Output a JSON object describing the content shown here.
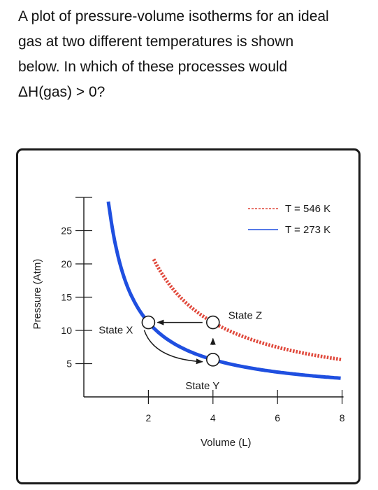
{
  "question": {
    "line1": "A plot of pressure-volume isotherms for an ideal",
    "line2": "gas at two different temperatures is shown",
    "line3": "below. In which of these processes would",
    "line4": "ΔH(gas) > 0?"
  },
  "chart_data": {
    "type": "line",
    "xlabel": "Volume (L)",
    "ylabel": "Pressure (Atm)",
    "xlim": [
      0,
      8
    ],
    "ylim": [
      0,
      30
    ],
    "x_ticks": [
      2,
      4,
      6,
      8
    ],
    "y_ticks": [
      5,
      10,
      15,
      20,
      25
    ],
    "grid": false,
    "legend_position": "top-right",
    "series": [
      {
        "name": "T = 546 K",
        "style": "dotted",
        "color": "#e0483b",
        "nRT": 44.8
      },
      {
        "name": "T = 273 K",
        "style": "solid",
        "color": "#1f4fe0",
        "nRT": 22.4
      }
    ],
    "states": [
      {
        "label": "State X",
        "x": 2.0,
        "y": 11.2
      },
      {
        "label": "State Y",
        "x": 4.0,
        "y": 5.6
      },
      {
        "label": "State Z",
        "x": 4.0,
        "y": 11.2
      }
    ],
    "arrows": [
      {
        "from": "State Z",
        "to": "State X"
      },
      {
        "from": "State Y",
        "to": "State Z"
      },
      {
        "from": "State X",
        "to": "State Y"
      }
    ]
  }
}
